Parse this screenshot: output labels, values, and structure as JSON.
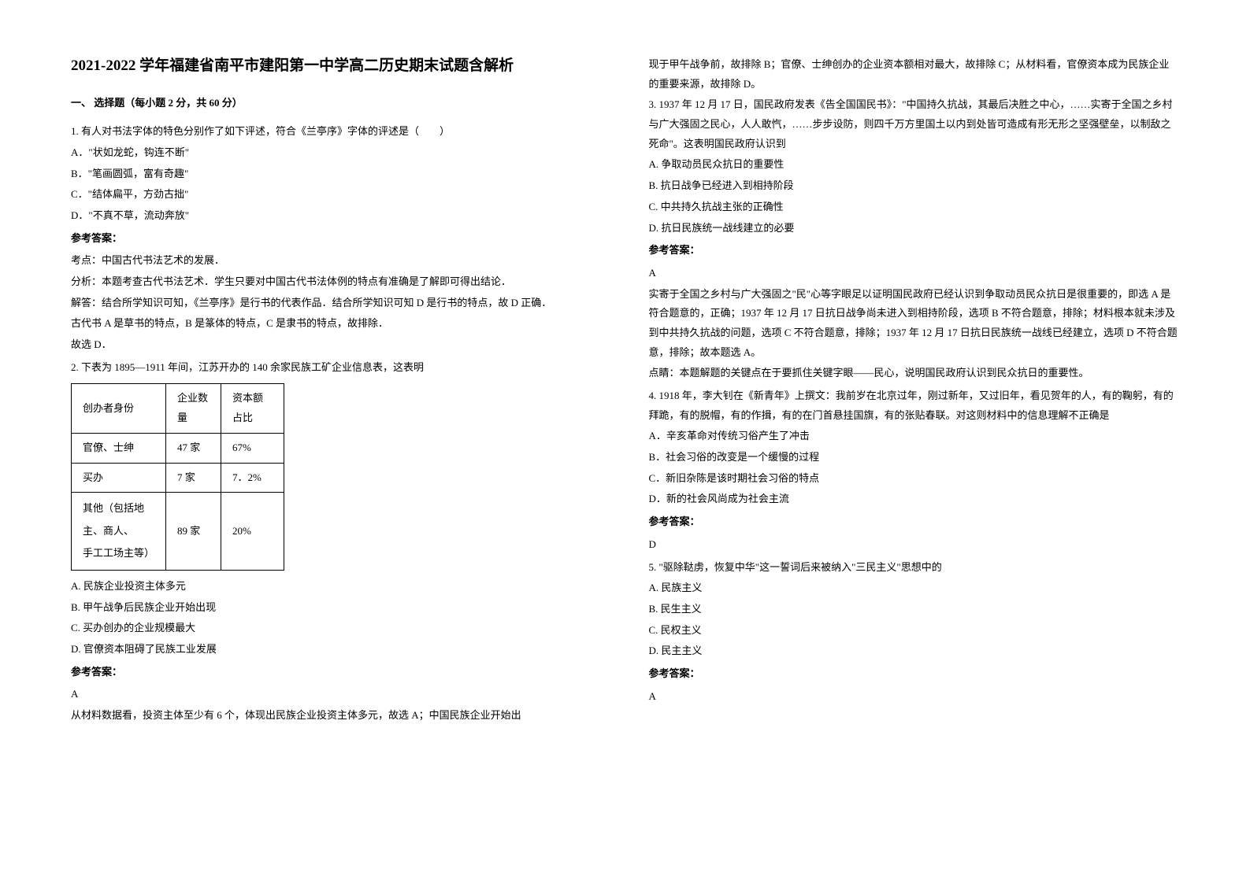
{
  "title": "2021-2022 学年福建省南平市建阳第一中学高二历史期末试题含解析",
  "section1_header": "一、 选择题（每小题 2 分，共 60 分）",
  "q1": {
    "text": "1. 有人对书法字体的特色分别作了如下评述，符合《兰亭序》字体的评述是（　　）",
    "optA": "A．\"状如龙蛇，钩连不断\"",
    "optB": "B．\"笔画圆弧，富有奇趣\"",
    "optC": "C．\"结体扁平，方劲古拙\"",
    "optD": "D．\"不真不草，流动奔放\"",
    "ans_label": "参考答案：",
    "ans1": "考点：中国古代书法艺术的发展．",
    "ans2": "分析：本题考查古代书法艺术．学生只要对中国古代书法体例的特点有准确是了解即可得出结论．",
    "ans3": "解答：结合所学知识可知，《兰亭序》是行书的代表作品．结合所学知识可知 D 是行书的特点，故 D 正确．",
    "ans4": "古代书 A 是草书的特点，B 是篆体的特点，C 是隶书的特点，故排除．",
    "ans5": "故选 D．"
  },
  "q2": {
    "text": "2. 下表为 1895—1911 年间，江苏开办的 140 余家民族工矿企业信息表，这表明",
    "table": {
      "headers": [
        "创办者身份",
        "企业数量",
        "资本额占比"
      ],
      "rows": [
        [
          "官僚、士绅",
          "47 家",
          "67%"
        ],
        [
          "买办",
          "7 家",
          "7．2%"
        ],
        [
          "其他（包括地主、商人、\n手工工场主等）",
          "89 家",
          "20%"
        ]
      ],
      "col_widths": [
        "120px",
        "70px",
        "80px"
      ]
    },
    "optA": "A. 民族企业投资主体多元",
    "optB": "B. 甲午战争后民族企业开始出现",
    "optC": "C. 买办创办的企业规模最大",
    "optD": "D. 官僚资本阻碍了民族工业发展",
    "ans_label": "参考答案：",
    "ans_letter": "A",
    "ans_text1": "从材料数据看，投资主体至少有 6 个，体现出民族企业投资主体多元，故选 A；中国民族企业开始出",
    "ans_text2": "现于甲午战争前，故排除 B；官僚、士绅创办的企业资本额相对最大，故排除 C；从材料看，官僚资本成为民族企业的重要来源，故排除 D。"
  },
  "q3": {
    "text": "3. 1937 年 12 月 17 日，国民政府发表《告全国国民书》：\"中国持久抗战，其最后决胜之中心，……实寄于全国之乡村与广大强固之民心，人人敢忾，……步步设防，则四千万方里国土以内到处皆可造成有形无形之坚强壁垒，以制敌之死命\"。这表明国民政府认识到",
    "optA": "A. 争取动员民众抗日的重要性",
    "optB": "B. 抗日战争已经进入到相持阶段",
    "optC": "C. 中共持久抗战主张的正确性",
    "optD": "D. 抗日民族统一战线建立的必要",
    "ans_label": "参考答案：",
    "ans_letter": "A",
    "ans_text1": "实寄于全国之乡村与广大强固之\"民\"心等字眼足以证明国民政府已经认识到争取动员民众抗日是很重要的，即选 A 是符合题意的，正确；1937 年 12 月 17 日抗日战争尚未进入到相持阶段，选项 B 不符合题意，排除；材料根本就未涉及到中共持久抗战的问题，选项 C 不符合题意，排除；1937 年 12 月 17 日抗日民族统一战线已经建立，选项 D 不符合题意，排除；故本题选 A。",
    "ans_text2": "点睛：本题解题的关键点在于要抓住关键字眼——民心，说明国民政府认识到民众抗日的重要性。"
  },
  "q4": {
    "text": "4. 1918 年，李大钊在《新青年》上撰文：我前岁在北京过年，刚过新年，又过旧年，看见贺年的人，有的鞠躬，有的拜跪，有的脱帽，有的作揖，有的在门首悬挂国旗，有的张贴春联。对这则材料中的信息理解不正确是",
    "optA": "A．辛亥革命对传统习俗产生了冲击",
    "optB": "B．社会习俗的改变是一个缓慢的过程",
    "optC": "C．新旧杂陈是该时期社会习俗的特点",
    "optD": "D．新的社会风尚成为社会主流",
    "ans_label": "参考答案：",
    "ans_letter": "D"
  },
  "q5": {
    "text": "5. \"驱除鞑虏，恢复中华\"这一誓词后来被纳入\"三民主义\"思想中的",
    "optA": "A. 民族主义",
    "optB": "B. 民生主义",
    "optC": "C. 民权主义",
    "optD": "D. 民主主义",
    "ans_label": "参考答案：",
    "ans_letter": "A"
  }
}
